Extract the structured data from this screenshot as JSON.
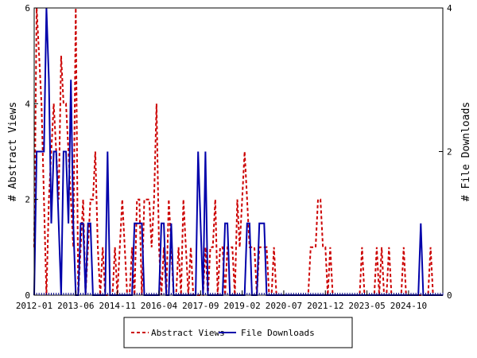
{
  "chart_data": {
    "type": "line",
    "title": "",
    "xlabel": "",
    "ylabel": "# Abstract Views",
    "y2label": "# File Downloads",
    "xlim": [
      "2012-01",
      "2025-12"
    ],
    "ylim": [
      0,
      6
    ],
    "y2lim": [
      0,
      4
    ],
    "x_tick_labels": [
      "2012-01",
      "2013-06",
      "2014-11",
      "2016-04",
      "2017-09",
      "2019-02",
      "2020-07",
      "2021-12",
      "2023-05",
      "2024-10"
    ],
    "y_ticks": [
      0,
      2,
      4,
      6
    ],
    "y2_ticks": [
      0,
      2,
      4
    ],
    "legend_position": "bottom-center",
    "grid": false,
    "x": [
      "2012-01",
      "2012-02",
      "2012-03",
      "2012-04",
      "2012-05",
      "2012-06",
      "2012-07",
      "2012-08",
      "2012-09",
      "2012-10",
      "2012-11",
      "2012-12",
      "2013-01",
      "2013-02",
      "2013-03",
      "2013-04",
      "2013-05",
      "2013-06",
      "2013-07",
      "2013-08",
      "2013-09",
      "2013-10",
      "2013-11",
      "2013-12",
      "2014-01",
      "2014-02",
      "2014-03",
      "2014-04",
      "2014-05",
      "2014-06",
      "2014-07",
      "2014-08",
      "2014-09",
      "2014-10",
      "2014-11",
      "2014-12",
      "2015-01",
      "2015-02",
      "2015-03",
      "2015-04",
      "2015-05",
      "2015-06",
      "2015-07",
      "2015-08",
      "2015-09",
      "2015-10",
      "2015-11",
      "2015-12",
      "2016-01",
      "2016-02",
      "2016-03",
      "2016-04",
      "2016-05",
      "2016-06",
      "2016-07",
      "2016-08",
      "2016-09",
      "2016-10",
      "2016-11",
      "2016-12",
      "2017-01",
      "2017-02",
      "2017-03",
      "2017-04",
      "2017-05",
      "2017-06",
      "2017-07",
      "2017-08",
      "2017-09",
      "2017-10",
      "2017-11",
      "2017-12",
      "2018-01",
      "2018-02",
      "2018-03",
      "2018-04",
      "2018-05",
      "2018-06",
      "2018-07",
      "2018-08",
      "2018-09",
      "2018-10",
      "2018-11",
      "2018-12",
      "2019-01",
      "2019-02",
      "2019-03",
      "2019-04",
      "2019-05",
      "2019-06",
      "2019-07",
      "2019-08",
      "2019-09",
      "2019-10",
      "2019-11",
      "2019-12",
      "2020-01",
      "2020-02",
      "2020-03",
      "2020-04",
      "2020-05",
      "2020-06",
      "2020-07",
      "2020-08",
      "2020-09",
      "2020-10",
      "2020-11",
      "2020-12",
      "2021-01",
      "2021-02",
      "2021-03",
      "2021-04",
      "2021-05",
      "2021-06",
      "2021-07",
      "2021-08",
      "2021-09",
      "2021-10",
      "2021-11",
      "2021-12",
      "2022-01",
      "2022-02",
      "2022-03",
      "2022-04",
      "2022-05",
      "2022-06",
      "2022-07",
      "2022-08",
      "2022-09",
      "2022-10",
      "2022-11",
      "2022-12",
      "2023-01",
      "2023-02",
      "2023-03",
      "2023-04",
      "2023-05",
      "2023-06",
      "2023-07",
      "2023-08",
      "2023-09",
      "2023-10",
      "2023-11",
      "2023-12",
      "2024-01",
      "2024-02",
      "2024-03",
      "2024-04",
      "2024-05",
      "2024-06",
      "2024-07",
      "2024-08",
      "2024-09",
      "2024-10",
      "2024-11",
      "2024-12",
      "2025-01",
      "2025-02",
      "2025-03",
      "2025-04",
      "2025-05",
      "2025-06",
      "2025-07",
      "2025-08",
      "2025-09",
      "2025-10",
      "2025-11",
      "2025-12"
    ],
    "series": [
      {
        "name": "Abstract Views",
        "axis": "left",
        "color": "#cc0000",
        "dash": "dashed",
        "values": [
          1,
          6,
          5,
          4,
          2,
          0,
          2,
          3,
          4,
          3,
          2,
          5,
          4,
          4,
          3,
          2,
          1,
          6,
          0,
          1,
          2,
          0,
          1,
          2,
          2,
          3,
          1,
          0,
          1,
          0,
          0,
          0,
          0,
          1,
          0,
          1,
          2,
          1,
          0,
          0,
          1,
          0,
          2,
          2,
          0,
          2,
          2,
          2,
          1,
          2,
          4,
          1,
          0,
          1,
          0,
          2,
          1,
          0,
          0,
          1,
          0,
          2,
          1,
          0,
          1,
          0,
          0,
          0,
          0,
          0,
          1,
          0,
          1,
          1,
          2,
          0,
          1,
          1,
          0,
          1,
          1,
          1,
          0,
          2,
          1,
          2,
          3,
          2,
          1,
          1,
          1,
          0,
          1,
          1,
          1,
          1,
          0,
          0,
          1,
          0,
          0,
          0,
          0,
          0,
          0,
          0,
          0,
          0,
          0,
          0,
          0,
          0,
          0,
          1,
          1,
          1,
          2,
          2,
          1,
          1,
          0,
          1,
          0,
          0,
          0,
          0,
          0,
          0,
          0,
          0,
          0,
          0,
          0,
          0,
          1,
          0,
          0,
          0,
          0,
          0,
          1,
          0,
          1,
          0,
          0,
          1,
          0,
          0,
          0,
          0,
          0,
          1,
          0,
          0,
          0,
          0,
          0,
          0,
          0,
          0,
          0,
          0,
          1,
          0,
          0,
          0,
          0,
          0
        ]
      },
      {
        "name": "File Downloads",
        "axis": "right",
        "color": "#0000aa",
        "dash": "solid",
        "values": [
          0,
          2,
          2,
          2,
          2,
          4,
          3,
          1,
          2,
          2,
          1,
          0,
          2,
          2,
          1,
          3,
          1,
          0,
          0,
          1,
          1,
          0,
          1,
          1,
          0,
          0,
          0,
          0,
          0,
          0,
          2,
          0,
          0,
          0,
          0,
          0,
          0,
          0,
          0,
          0,
          0,
          1,
          1,
          1,
          1,
          0,
          0,
          0,
          0,
          0,
          0,
          0,
          1,
          1,
          0,
          0,
          1,
          0,
          0,
          0,
          0,
          0,
          0,
          0,
          0,
          0,
          0,
          2,
          1,
          0,
          2,
          0,
          0,
          0,
          0,
          0,
          0,
          0,
          1,
          1,
          0,
          0,
          0,
          0,
          0,
          0,
          0,
          1,
          1,
          0,
          0,
          0,
          1,
          1,
          1,
          0,
          0,
          0,
          0,
          0,
          0,
          0,
          0,
          0,
          0,
          0,
          0,
          0,
          0,
          0,
          0,
          0,
          0,
          0,
          0,
          0,
          0,
          0,
          0,
          0,
          0,
          0,
          0,
          0,
          0,
          0,
          0,
          0,
          0,
          0,
          0,
          0,
          0,
          0,
          0,
          0,
          0,
          0,
          0,
          0,
          0,
          0,
          0,
          0,
          0,
          0,
          0,
          0,
          0,
          0,
          0,
          0,
          0,
          0,
          0,
          0,
          0,
          0,
          1,
          0,
          0,
          0,
          0,
          0,
          0,
          0,
          0,
          0
        ]
      }
    ]
  }
}
